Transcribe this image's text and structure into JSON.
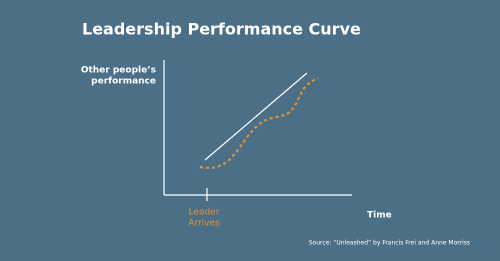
{
  "title": "Leadership Performance Curve",
  "y_axis_label": [
    "Other people’s",
    "performance"
  ],
  "x_axis_label": "Time",
  "marker_label": [
    "Leader",
    "Arrives"
  ],
  "source": "Source: “Unleashed” by Francis Frei and Anne Morriss"
}
